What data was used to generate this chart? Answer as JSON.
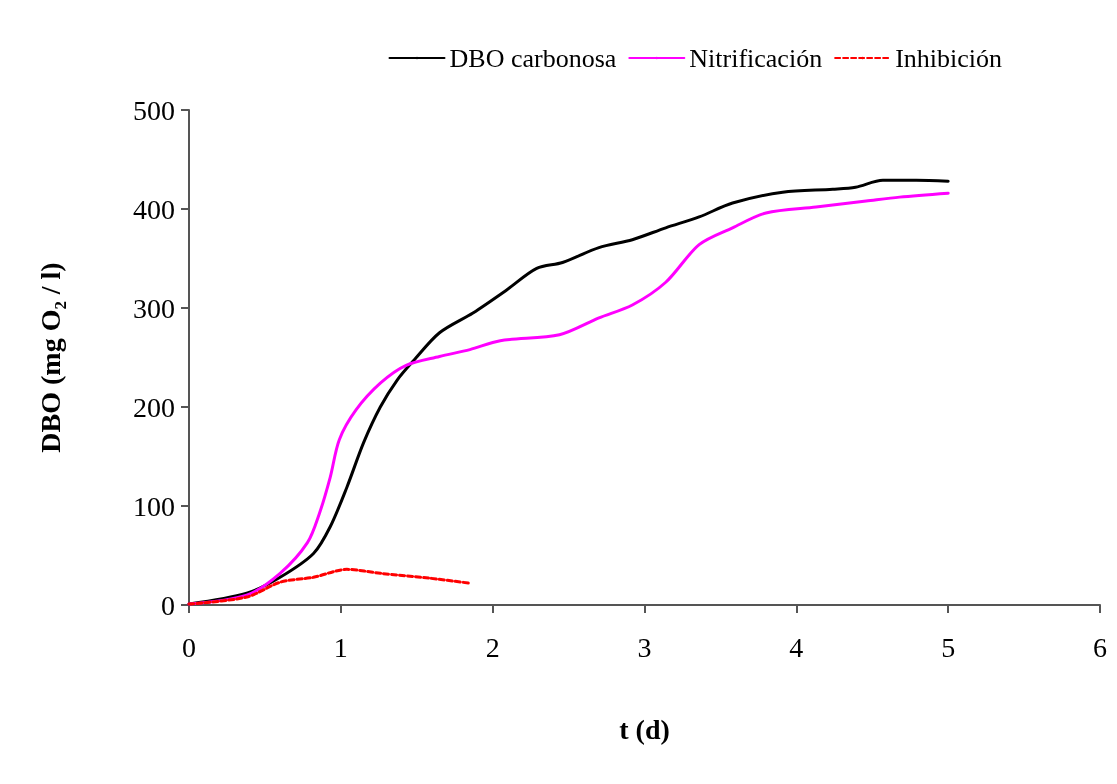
{
  "chart_data": {
    "type": "line",
    "xlabel": "t (d)",
    "ylabel": "DBO (mg O₂ / l)",
    "xlim": [
      0,
      6
    ],
    "xticks": [
      0,
      1,
      2,
      3,
      4,
      5,
      6
    ],
    "ylim": [
      0,
      500
    ],
    "yticks": [
      0,
      100,
      200,
      300,
      400,
      500
    ],
    "grid": false,
    "legend": "top right",
    "marker": "none",
    "series": [
      {
        "name": "DBO carbonosa",
        "color": "#000000",
        "line_style": "solid",
        "x": [
          0,
          0.38,
          0.6,
          0.82,
          0.93,
          1.04,
          1.15,
          1.26,
          1.37,
          1.48,
          1.65,
          1.87,
          2.09,
          2.29,
          2.46,
          2.7,
          2.92,
          3.14,
          3.36,
          3.58,
          3.91,
          4.24,
          4.39,
          4.57,
          4.79,
          5
        ],
        "values": [
          1,
          12,
          28,
          52,
          79,
          119,
          164,
          200,
          227,
          247,
          275,
          295,
          318,
          340,
          346,
          361,
          369,
          381,
          392,
          406,
          417,
          420,
          422,
          429,
          429,
          428
        ]
      },
      {
        "name": "Nitrificación",
        "color": "#ff00ff",
        "line_style": "solid",
        "x": [
          0,
          0.38,
          0.6,
          0.78,
          0.86,
          0.93,
          0.99,
          1.1,
          1.26,
          1.43,
          1.65,
          1.85,
          2.05,
          2.44,
          2.7,
          2.92,
          3.14,
          3.36,
          3.58,
          3.8,
          4.13,
          4.46,
          4.68,
          5
        ],
        "values": [
          1,
          10,
          32,
          63,
          93,
          129,
          167,
          197,
          224,
          242,
          251,
          258,
          267,
          273,
          290,
          303,
          326,
          364,
          381,
          396,
          402,
          408,
          412,
          416
        ]
      },
      {
        "name": "Inhibición",
        "color": "#ff0000",
        "line_style": "dashed",
        "x": [
          0,
          0.38,
          0.6,
          0.82,
          1.04,
          1.26,
          1.59,
          1.85
        ],
        "values": [
          1,
          8,
          23,
          28,
          36,
          32,
          27,
          22
        ]
      }
    ]
  }
}
